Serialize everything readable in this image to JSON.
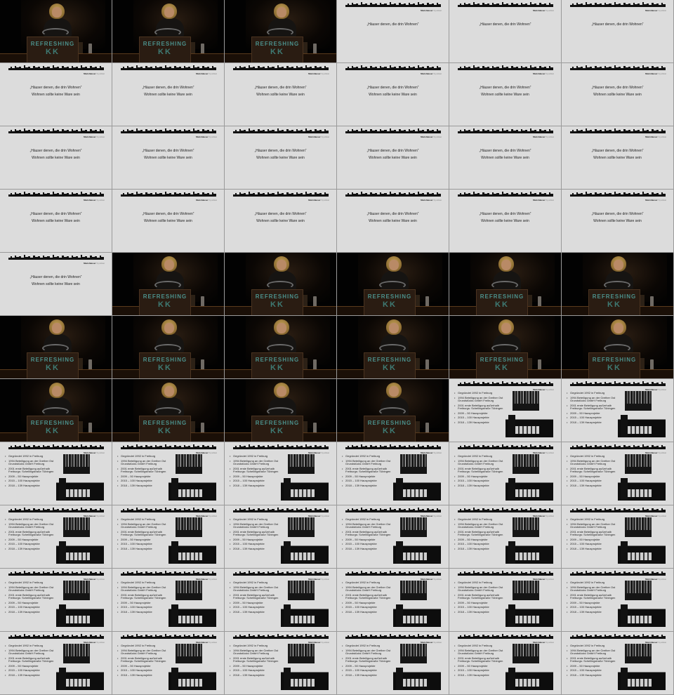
{
  "layout": {
    "columns": 6,
    "rows": 11
  },
  "stage": {
    "podium_title": "REFRESHING",
    "podium_subtitle": "KK"
  },
  "slide_header": {
    "brand_name": "Mietshäuser",
    "brand_suffix": "Syndikat"
  },
  "slide_quote": {
    "title": "„Häuser denen, die drin Wohnen“",
    "subtitle": "Wohnen sollte keine Ware sein"
  },
  "slide_history": {
    "bullets": [
      "Gegründet 1992 in Freiburg",
      "1994 Beteiligung an der Grether Ost Grundstücks GmbH Freiburg",
      "2001 erste Beteiligung außerhalb Freiburgs: Schellingstraße Tübingen",
      "2009 – 50 Hausprojekte",
      "2015 – 100 Hausprojekte",
      "2018 – 139 Hausprojekte"
    ]
  },
  "frames": [
    "stage",
    "stage",
    "stage",
    "quote1",
    "quote1",
    "quote1",
    "quote2",
    "quote2",
    "quote2",
    "quote2",
    "quote2",
    "quote2",
    "quote2",
    "quote2",
    "quote2",
    "quote2",
    "quote2",
    "quote2",
    "quote2",
    "quote2",
    "quote2",
    "quote2",
    "quote2",
    "quote2",
    "quote2",
    "stage",
    "stage",
    "stage",
    "stage",
    "stage",
    "stage",
    "stage",
    "stage",
    "stage",
    "stage",
    "stage",
    "stage",
    "stage",
    "stage",
    "stage",
    "history",
    "history",
    "history",
    "history",
    "history",
    "history",
    "history",
    "history",
    "history",
    "history",
    "history",
    "history",
    "history",
    "history",
    "history",
    "history",
    "history",
    "history",
    "history",
    "history",
    "history",
    "history",
    "history",
    "history",
    "history",
    "history"
  ]
}
